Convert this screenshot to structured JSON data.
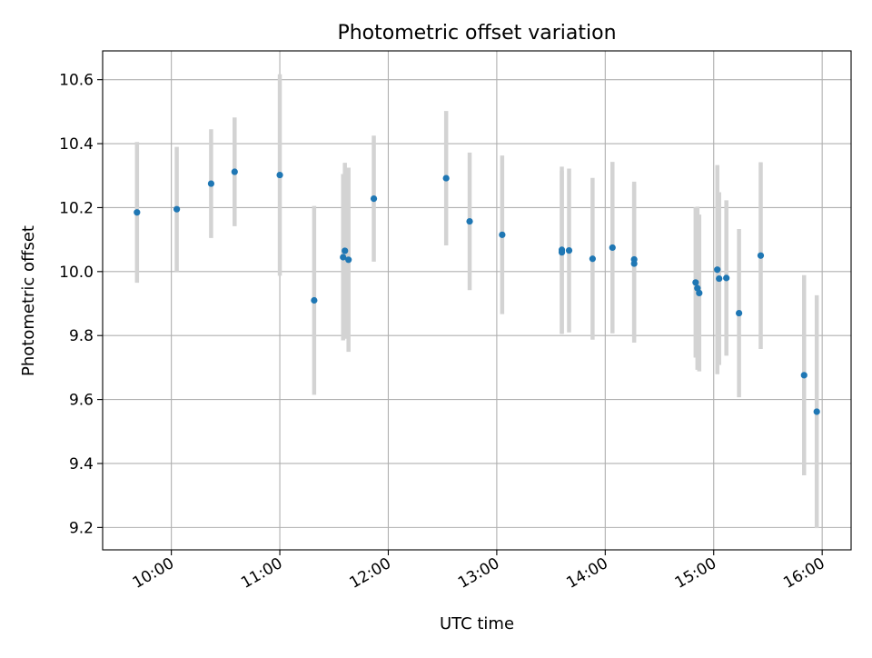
{
  "chart_data": {
    "type": "scatter",
    "title": "Photometric offset variation",
    "xlabel": "UTC time",
    "ylabel": "Photometric offset",
    "x_ticks": [
      "10:00",
      "11:00",
      "12:00",
      "13:00",
      "14:00",
      "15:00",
      "16:00"
    ],
    "y_ticks": [
      "9.2",
      "9.4",
      "9.6",
      "9.8",
      "10.0",
      "10.2",
      "10.4",
      "10.6"
    ],
    "xlim": [
      "09:22",
      "16:16"
    ],
    "ylim": [
      9.13,
      10.69
    ],
    "grid": true,
    "colors": {
      "point": "#1f77b4",
      "errorbar": "#d3d3d3",
      "grid": "#b0b0b0"
    },
    "series": [
      {
        "points": [
          {
            "x": "09:41",
            "y": 10.185,
            "err": 0.22
          },
          {
            "x": "10:03",
            "y": 10.195,
            "err": 0.195
          },
          {
            "x": "10:22",
            "y": 10.275,
            "err": 0.17
          },
          {
            "x": "10:35",
            "y": 10.312,
            "err": 0.17
          },
          {
            "x": "11:00",
            "y": 10.302,
            "err": 0.315
          },
          {
            "x": "11:19",
            "y": 9.91,
            "err": 0.295
          },
          {
            "x": "11:35",
            "y": 10.045,
            "err": 0.26
          },
          {
            "x": "11:36",
            "y": 10.065,
            "err": 0.275
          },
          {
            "x": "11:38",
            "y": 10.037,
            "err": 0.288
          },
          {
            "x": "11:52",
            "y": 10.228,
            "err": 0.197
          },
          {
            "x": "12:32",
            "y": 10.292,
            "err": 0.21
          },
          {
            "x": "12:45",
            "y": 10.157,
            "err": 0.215
          },
          {
            "x": "13:03",
            "y": 10.115,
            "err": 0.248
          },
          {
            "x": "13:36",
            "y": 10.068,
            "err": 0.26
          },
          {
            "x": "13:36",
            "y": 10.06,
            "err": 0.255
          },
          {
            "x": "13:40",
            "y": 10.066,
            "err": 0.256
          },
          {
            "x": "13:53",
            "y": 10.04,
            "err": 0.253
          },
          {
            "x": "14:04",
            "y": 10.075,
            "err": 0.268
          },
          {
            "x": "14:16",
            "y": 10.038,
            "err": 0.243
          },
          {
            "x": "14:16",
            "y": 10.025,
            "err": 0.247
          },
          {
            "x": "14:50",
            "y": 9.966,
            "err": 0.235
          },
          {
            "x": "14:51",
            "y": 9.948,
            "err": 0.255
          },
          {
            "x": "14:52",
            "y": 9.933,
            "err": 0.245
          },
          {
            "x": "15:02",
            "y": 10.006,
            "err": 0.327
          },
          {
            "x": "15:03",
            "y": 9.978,
            "err": 0.27
          },
          {
            "x": "15:07",
            "y": 9.98,
            "err": 0.243
          },
          {
            "x": "15:14",
            "y": 9.87,
            "err": 0.263
          },
          {
            "x": "15:26",
            "y": 10.05,
            "err": 0.292
          },
          {
            "x": "15:50",
            "y": 9.676,
            "err": 0.313
          },
          {
            "x": "15:57",
            "y": 9.562,
            "err": 0.364
          }
        ]
      }
    ]
  }
}
